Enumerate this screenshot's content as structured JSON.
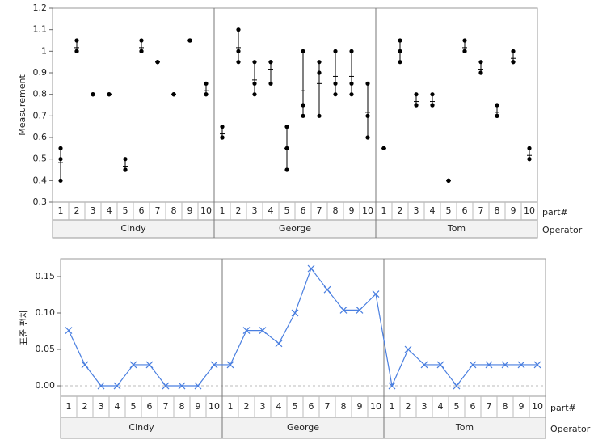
{
  "chart_data": [
    {
      "type": "variability",
      "y_label": "Measurement",
      "x_labels": [
        "part#",
        "Operator"
      ],
      "ylim": [
        0.3,
        1.2
      ],
      "yticks": [
        0.3,
        0.4,
        0.5,
        0.6,
        0.7,
        0.8,
        0.9,
        1,
        1.1,
        1.2
      ],
      "color": "#000000",
      "groups": [
        {
          "name": "Cindy",
          "parts": [
            1,
            2,
            3,
            4,
            5,
            6,
            7,
            8,
            9,
            10
          ],
          "measurements": [
            [
              0.55,
              0.5,
              0.4
            ],
            [
              1.05,
              1.0,
              1.0
            ],
            [
              0.8,
              0.8,
              0.8
            ],
            [
              0.8,
              0.8,
              0.8
            ],
            [
              0.5,
              0.45,
              0.45
            ],
            [
              1.05,
              1.0,
              1.0
            ],
            [
              0.95,
              0.95,
              0.95
            ],
            [
              0.8,
              0.8,
              0.8
            ],
            [
              1.05,
              1.05,
              1.05
            ],
            [
              0.85,
              0.8,
              0.8
            ]
          ]
        },
        {
          "name": "George",
          "parts": [
            1,
            2,
            3,
            4,
            5,
            6,
            7,
            8,
            9,
            10
          ],
          "measurements": [
            [
              0.65,
              0.6,
              0.6
            ],
            [
              1.1,
              1.0,
              0.95
            ],
            [
              0.95,
              0.85,
              0.8
            ],
            [
              0.95,
              0.95,
              0.85
            ],
            [
              0.65,
              0.55,
              0.45
            ],
            [
              1.0,
              0.75,
              0.7
            ],
            [
              0.95,
              0.9,
              0.7
            ],
            [
              1.0,
              0.85,
              0.8
            ],
            [
              1.0,
              0.85,
              0.8
            ],
            [
              0.85,
              0.7,
              0.6
            ]
          ]
        },
        {
          "name": "Tom",
          "parts": [
            1,
            2,
            3,
            4,
            5,
            6,
            7,
            8,
            9,
            10
          ],
          "measurements": [
            [
              0.55,
              0.55,
              0.55
            ],
            [
              1.05,
              1.0,
              0.95
            ],
            [
              0.8,
              0.75,
              0.75
            ],
            [
              0.8,
              0.75,
              0.75
            ],
            [
              0.4,
              0.4,
              0.4
            ],
            [
              1.05,
              1.0,
              1.0
            ],
            [
              0.95,
              0.9,
              0.9
            ],
            [
              0.75,
              0.7,
              0.7
            ],
            [
              1.0,
              0.95,
              0.95
            ],
            [
              0.55,
              0.5,
              0.5
            ]
          ]
        }
      ]
    },
    {
      "type": "line",
      "y_label": "표준 편차",
      "x_labels": [
        "part#",
        "Operator"
      ],
      "ylim": [
        -0.0144,
        0.1744
      ],
      "yticks": [
        {
          "value": 0,
          "label": "0.00"
        },
        0.05,
        {
          "value": 0.1,
          "label": "0.10"
        },
        0.15
      ],
      "reference_line": 0,
      "color": "#4a7fe0",
      "groups": [
        {
          "name": "Cindy",
          "parts": [
            1,
            2,
            3,
            4,
            5,
            6,
            7,
            8,
            9,
            10
          ],
          "values": [
            0.076,
            0.029,
            0,
            0,
            0.029,
            0.029,
            0,
            0,
            0,
            0.029
          ]
        },
        {
          "name": "George",
          "parts": [
            1,
            2,
            3,
            4,
            5,
            6,
            7,
            8,
            9,
            10
          ],
          "values": [
            0.029,
            0.076,
            0.076,
            0.058,
            0.1,
            0.161,
            0.132,
            0.104,
            0.104,
            0.126
          ]
        },
        {
          "name": "Tom",
          "parts": [
            1,
            2,
            3,
            4,
            5,
            6,
            7,
            8,
            9,
            10
          ],
          "values": [
            0,
            0.05,
            0.029,
            0.029,
            0,
            0.029,
            0.029,
            0.029,
            0.029,
            0.029
          ]
        }
      ]
    }
  ]
}
